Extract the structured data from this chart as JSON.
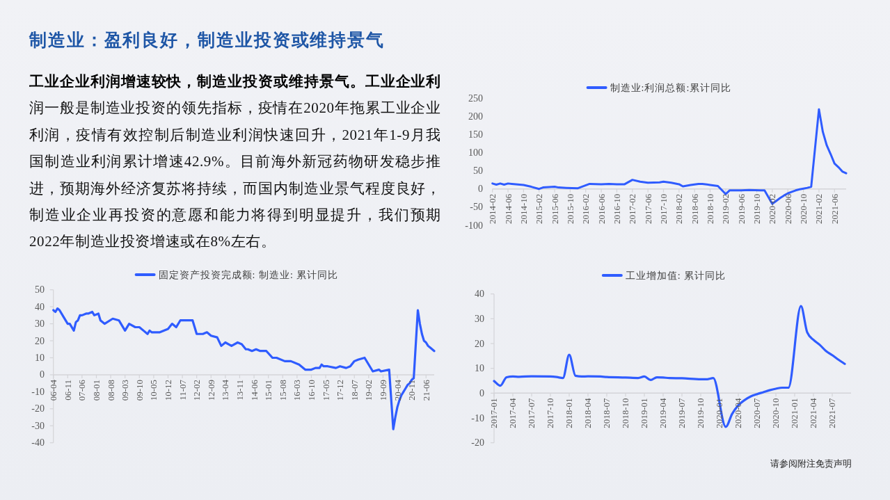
{
  "chart_data": [
    {
      "type": "other",
      "title": "制造业：盈利良好，制造业投资或维持景气",
      "annotations": [
        "工业企业利润增速较快，制造业投资或维持景气。",
        "工业企业利润一般是制造业投资的领先指标，疫情在2020年拖累工业企业利润，疫情有效控制后制造业利润快速回升，2021年1-9月我国制造业利润累计增速42.9%。目前海外新冠药物研发稳步推进，预期海外经济复苏将持续，而国内制造业景气程度良好，制造业企业再投资的意愿和能力将得到明显提升，我们预期2022年制造业投资增速或在8%左右。",
        "请参阅附注免责声明"
      ]
    },
    {
      "type": "line",
      "legend": "top",
      "xlim": [
        "2014-02",
        "2021-09"
      ],
      "ylim": [
        -100,
        250
      ],
      "yticks": [
        -100,
        -50,
        0,
        50,
        100,
        150,
        200,
        250
      ],
      "xticks": [
        "2014-02",
        "2014-06",
        "2014-10",
        "2015-02",
        "2015-06",
        "2015-10",
        "2016-02",
        "2016-06",
        "2016-10",
        "2017-02",
        "2017-06",
        "2017-10",
        "2018-02",
        "2018-06",
        "2018-10",
        "2019-02",
        "2019-06",
        "2019-10",
        "2020-02",
        "2020-06",
        "2020-10",
        "2021-02",
        "2021-06"
      ],
      "series": [
        {
          "name": "制造业:利润总额:累计同比",
          "color": "#2f5cff",
          "x": [
            "2014-02",
            "2014-03",
            "2014-04",
            "2014-05",
            "2014-06",
            "2014-07",
            "2014-09",
            "2014-10",
            "2014-12",
            "2015-02",
            "2015-03",
            "2015-06",
            "2015-07",
            "2015-09",
            "2015-12",
            "2016-03",
            "2016-06",
            "2016-08",
            "2016-10",
            "2016-12",
            "2017-02",
            "2017-04",
            "2017-06",
            "2017-09",
            "2017-10",
            "2017-12",
            "2018-02",
            "2018-03",
            "2018-05",
            "2018-07",
            "2018-08",
            "2018-10",
            "2018-12",
            "2019-02",
            "2019-03",
            "2019-06",
            "2019-08",
            "2019-11",
            "2019-12",
            "2020-02",
            "2020-03",
            "2020-04",
            "2020-05",
            "2020-06",
            "2020-07",
            "2020-08",
            "2020-09",
            "2020-10",
            "2020-11",
            "2020-12",
            "2021-02",
            "2021-03",
            "2021-04",
            "2021-05",
            "2021-06",
            "2021-07",
            "2021-08",
            "2021-09"
          ],
          "values": [
            15,
            12,
            15,
            12,
            15,
            14,
            12,
            11,
            6,
            0,
            4,
            6,
            4,
            3,
            2,
            14,
            13,
            14,
            13,
            13,
            25,
            20,
            17,
            18,
            20,
            17,
            13,
            7,
            11,
            14,
            14,
            11,
            8,
            -14,
            -4,
            -4,
            -3,
            -4,
            -4,
            -41,
            -33,
            -25,
            -18,
            -12,
            -8,
            -4,
            -1,
            1,
            3,
            6,
            219,
            157,
            120,
            96,
            70,
            60,
            48,
            43
          ]
        }
      ]
    },
    {
      "type": "line",
      "legend": "top",
      "xlim": [
        "2006-04",
        "2021-10"
      ],
      "ylim": [
        -40,
        50
      ],
      "yticks": [
        -40,
        -30,
        -20,
        -10,
        0,
        10,
        20,
        30,
        40,
        50
      ],
      "xticks": [
        {
          "value": "2006-04",
          "label": "06-04"
        },
        {
          "value": "2006-11",
          "label": "06-11"
        },
        {
          "value": "2007-06",
          "label": "07-06"
        },
        {
          "value": "2008-01",
          "label": "08-01"
        },
        {
          "value": "2008-08",
          "label": "08-08"
        },
        {
          "value": "2009-03",
          "label": "09-03"
        },
        {
          "value": "2009-10",
          "label": "09-10"
        },
        {
          "value": "2010-05",
          "label": "10-05"
        },
        {
          "value": "2010-12",
          "label": "10-12"
        },
        {
          "value": "2011-07",
          "label": "11-07"
        },
        {
          "value": "2012-02",
          "label": "12-02"
        },
        {
          "value": "2012-09",
          "label": "12-09"
        },
        {
          "value": "2013-04",
          "label": "13-04"
        },
        {
          "value": "2013-11",
          "label": "13-11"
        },
        {
          "value": "2014-06",
          "label": "14-06"
        },
        {
          "value": "2015-01",
          "label": "15-01"
        },
        {
          "value": "2015-08",
          "label": "15-08"
        },
        {
          "value": "2016-03",
          "label": "16-03"
        },
        {
          "value": "2016-10",
          "label": "16-10"
        },
        {
          "value": "2017-05",
          "label": "17-05"
        },
        {
          "value": "2017-12",
          "label": "17-12"
        },
        {
          "value": "2018-07",
          "label": "18-07"
        },
        {
          "value": "2019-02",
          "label": "19-02"
        },
        {
          "value": "2019-09",
          "label": "19-09"
        },
        {
          "value": "2020-04",
          "label": "20-04"
        },
        {
          "value": "2020-11",
          "label": "20-11"
        },
        {
          "value": "2021-06",
          "label": "21-06"
        }
      ],
      "series": [
        {
          "name": "固定资产投资完成额: 制造业: 累计同比",
          "color": "#2f5cff",
          "x": [
            "2006-04",
            "2006-05",
            "2006-06",
            "2006-07",
            "2006-09",
            "2006-11",
            "2006-12",
            "2007-02",
            "2007-03",
            "2007-04",
            "2007-05",
            "2007-06",
            "2007-08",
            "2007-09",
            "2007-11",
            "2007-12",
            "2008-02",
            "2008-03",
            "2008-05",
            "2008-09",
            "2008-12",
            "2009-03",
            "2009-05",
            "2009-08",
            "2009-10",
            "2009-12",
            "2010-02",
            "2010-03",
            "2010-04",
            "2010-08",
            "2010-12",
            "2011-02",
            "2011-04",
            "2011-06",
            "2011-07",
            "2011-09",
            "2011-10",
            "2011-12",
            "2012-02",
            "2012-05",
            "2012-07",
            "2012-09",
            "2012-12",
            "2013-02",
            "2013-04",
            "2013-07",
            "2013-10",
            "2013-12",
            "2014-02",
            "2014-03",
            "2014-05",
            "2014-07",
            "2014-09",
            "2014-12",
            "2015-03",
            "2015-05",
            "2015-09",
            "2015-12",
            "2016-04",
            "2016-07",
            "2016-10",
            "2016-12",
            "2017-02",
            "2017-03",
            "2017-04",
            "2017-06",
            "2017-10",
            "2017-12",
            "2018-03",
            "2018-05",
            "2018-07",
            "2018-09",
            "2018-12",
            "2019-02",
            "2019-04",
            "2019-07",
            "2019-08",
            "2019-12",
            "2020-02",
            "2020-03",
            "2020-04",
            "2020-05",
            "2020-06",
            "2020-07",
            "2020-08",
            "2020-09",
            "2020-10",
            "2020-11",
            "2020-12",
            "2021-02",
            "2021-03",
            "2021-04",
            "2021-05",
            "2021-06",
            "2021-07",
            "2021-08",
            "2021-09",
            "2021-10"
          ],
          "values": [
            38,
            37,
            39,
            38,
            34,
            30,
            30,
            26,
            31,
            32,
            35,
            35,
            36,
            36,
            37,
            35,
            36,
            32,
            30,
            33,
            32,
            26,
            30,
            28,
            28,
            26,
            24,
            26,
            25,
            25,
            27,
            30,
            28,
            32,
            32,
            32,
            32,
            32,
            24,
            24,
            25,
            23,
            22,
            17,
            19,
            17,
            19,
            18,
            15,
            15,
            14,
            15,
            14,
            14,
            10,
            10,
            8,
            8,
            6,
            3,
            3,
            4,
            4,
            6,
            5,
            5,
            4,
            5,
            4,
            5,
            8,
            9,
            10,
            6,
            2,
            3,
            2,
            3,
            -32,
            -25,
            -19,
            -15,
            -12,
            -10,
            -8,
            -6,
            -5,
            -3,
            -2,
            38,
            30,
            24,
            20,
            19,
            17,
            16,
            15,
            14
          ]
        }
      ]
    },
    {
      "type": "line",
      "legend": "top",
      "xlim": [
        "2017-01",
        "2021-10"
      ],
      "ylim": [
        -20,
        40
      ],
      "yticks": [
        -20,
        -10,
        0,
        10,
        20,
        30,
        40
      ],
      "xticks": [
        "2017-01",
        "2017-04",
        "2017-07",
        "2017-10",
        "2018-01",
        "2018-04",
        "2018-07",
        "2018-10",
        "2019-01",
        "2019-04",
        "2019-07",
        "2019-10",
        "2020-01",
        "2020-04",
        "2020-07",
        "2020-10",
        "2021-01",
        "2021-04",
        "2021-07"
      ],
      "series": [
        {
          "name": "工业增加值: 累计同比",
          "color": "#2f5cff",
          "x": [
            "2017-01",
            "2017-02",
            "2017-03",
            "2017-04",
            "2017-05",
            "2017-07",
            "2017-10",
            "2017-11",
            "2017-12",
            "2018-01",
            "2018-02",
            "2018-03",
            "2018-04",
            "2018-06",
            "2018-07",
            "2018-10",
            "2018-12",
            "2019-01",
            "2019-02",
            "2019-03",
            "2019-04",
            "2019-05",
            "2019-07",
            "2019-10",
            "2019-11",
            "2019-12",
            "2020-02",
            "2020-03",
            "2020-04",
            "2020-05",
            "2020-06",
            "2020-07",
            "2020-08",
            "2020-09",
            "2020-10",
            "2020-11",
            "2020-12",
            "2021-02",
            "2021-03",
            "2021-04",
            "2021-05",
            "2021-06",
            "2021-07",
            "2021-08",
            "2021-09"
          ],
          "values": [
            4.9,
            3,
            6.4,
            6.7,
            6.6,
            6.8,
            6.7,
            6.5,
            6.1,
            15.5,
            7,
            6.7,
            6.8,
            6.7,
            6.5,
            6.3,
            6.1,
            6.7,
            5.3,
            6.4,
            6.3,
            6.1,
            6,
            5.6,
            5.6,
            6.1,
            -13.6,
            -8.4,
            -4.9,
            -2.8,
            -1.3,
            -0.4,
            0.4,
            1.2,
            1.8,
            2.2,
            2.2,
            35.1,
            24.5,
            21.5,
            19.5,
            17,
            15.3,
            13.5,
            11.8
          ]
        }
      ]
    }
  ]
}
